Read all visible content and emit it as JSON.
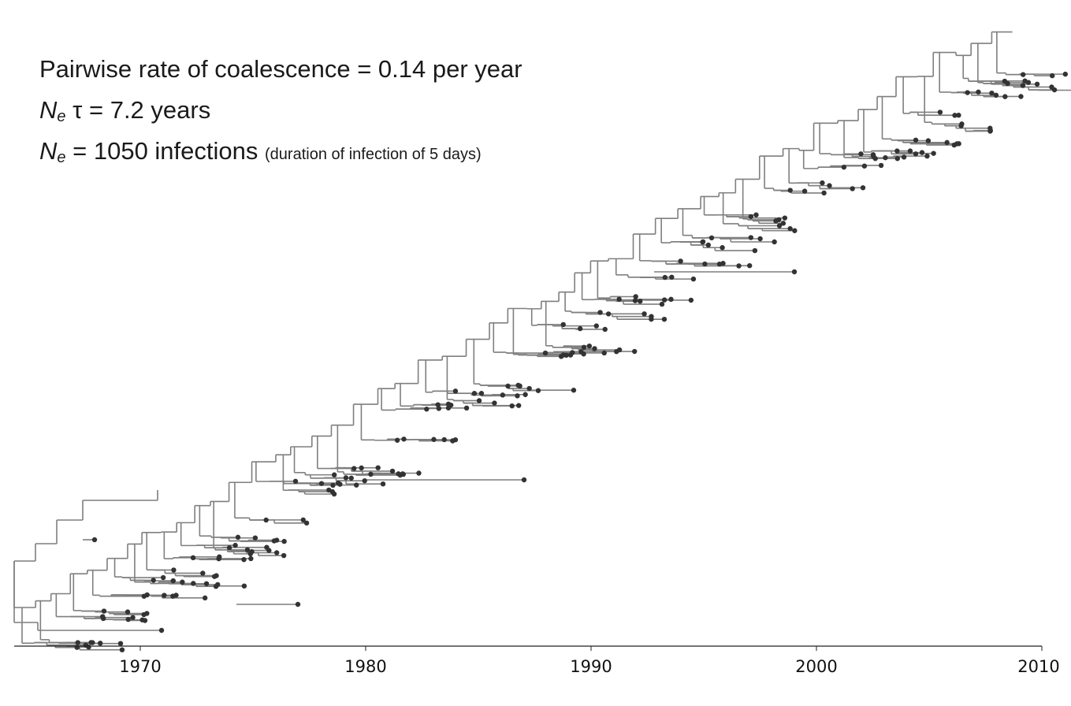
{
  "annotations": {
    "line1": "Pairwise rate of coalescence = 0.14 per year",
    "line2_symbol": "N",
    "line2_subscript": "e",
    "line2_rest": " τ = 7.2 years",
    "line3_symbol": "N",
    "line3_subscript": "e",
    "line3_rest": " = 1050 infections ",
    "line3_note": "(duration of infection of 5 days)"
  },
  "axis": {
    "label": "",
    "min": 1964.4,
    "max": 2010,
    "ticks": [
      "1970",
      "1980",
      "1990",
      "2000",
      "2010"
    ]
  },
  "colors": {
    "branch": "#7f7f7f",
    "tip": "#333333",
    "axis": "#222222"
  }
}
